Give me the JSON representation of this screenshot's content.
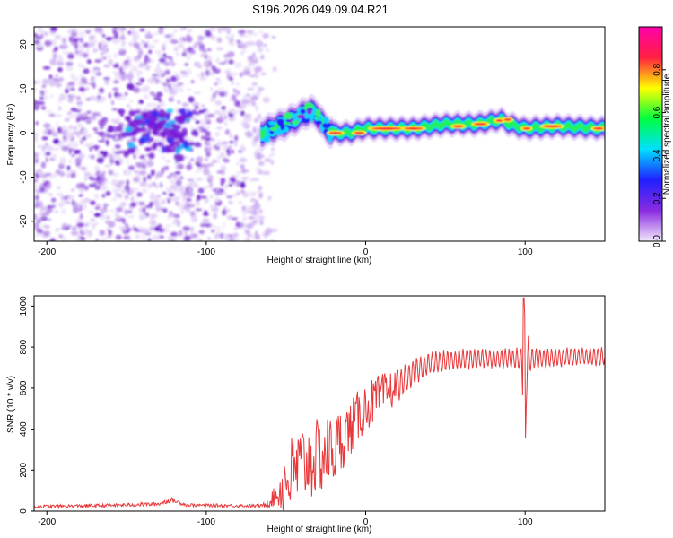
{
  "title": "S196.2026.049.09.04.R21",
  "chart_data": [
    {
      "type": "heatmap",
      "name": "spectrogram",
      "xlabel": "Height of straight line (km)",
      "ylabel": "Frequency (Hz)",
      "xlim": [
        -208,
        150
      ],
      "ylim": [
        -24.5,
        24
      ],
      "xticks": [
        -200,
        -100,
        0,
        100
      ],
      "yticks": [
        -20,
        -10,
        0,
        10,
        20
      ],
      "noise_region_x": [
        -208,
        -65
      ],
      "signal_band": {
        "x": [
          -65,
          -55,
          -45,
          -35,
          -30,
          -25,
          -20,
          -10,
          0,
          10,
          30,
          50,
          70,
          85,
          90,
          100,
          120,
          150
        ],
        "freq": [
          0,
          1.5,
          3,
          5,
          4,
          1,
          0,
          0,
          1,
          1,
          1,
          2,
          2,
          3,
          2,
          1,
          1.5,
          1
        ]
      },
      "colorbar": {
        "label": "Normalized spectral amplitude",
        "range": [
          0.0,
          1.0
        ],
        "ticks": [
          0.0,
          0.2,
          0.4,
          0.6,
          0.8
        ],
        "tick_labels": [
          "0.0",
          "0.2",
          "0.4",
          "0.6",
          "0.8"
        ],
        "colormap": [
          "#f2e8fb",
          "#8a2be2",
          "#2020ff",
          "#00e0ff",
          "#00ff40",
          "#ffff00",
          "#ff2040",
          "#ff00aa"
        ]
      }
    },
    {
      "type": "line",
      "name": "snr",
      "xlabel": "Height of straight line (km)",
      "ylabel": "SNR (10 * v/v)",
      "xlim": [
        -208,
        150
      ],
      "ylim": [
        0,
        1050
      ],
      "xticks": [
        -200,
        -100,
        0,
        100
      ],
      "yticks": [
        0,
        200,
        400,
        600,
        800,
        1000
      ],
      "color": "#e8383a",
      "envelope": {
        "x": [
          -208,
          -160,
          -130,
          -122,
          -112,
          -65,
          -55,
          -50,
          -40,
          -30,
          -20,
          -10,
          0,
          10,
          20,
          30,
          40,
          60,
          80,
          97,
          100,
          103,
          120,
          150
        ],
        "mean": [
          22,
          28,
          35,
          55,
          30,
          25,
          80,
          150,
          230,
          260,
          300,
          400,
          510,
          560,
          610,
          680,
          720,
          740,
          745,
          740,
          700,
          740,
          750,
          755
        ],
        "amplitude": [
          8,
          8,
          10,
          12,
          8,
          8,
          60,
          200,
          200,
          190,
          180,
          140,
          120,
          110,
          90,
          70,
          60,
          55,
          50,
          60,
          300,
          60,
          50,
          50
        ]
      }
    }
  ]
}
